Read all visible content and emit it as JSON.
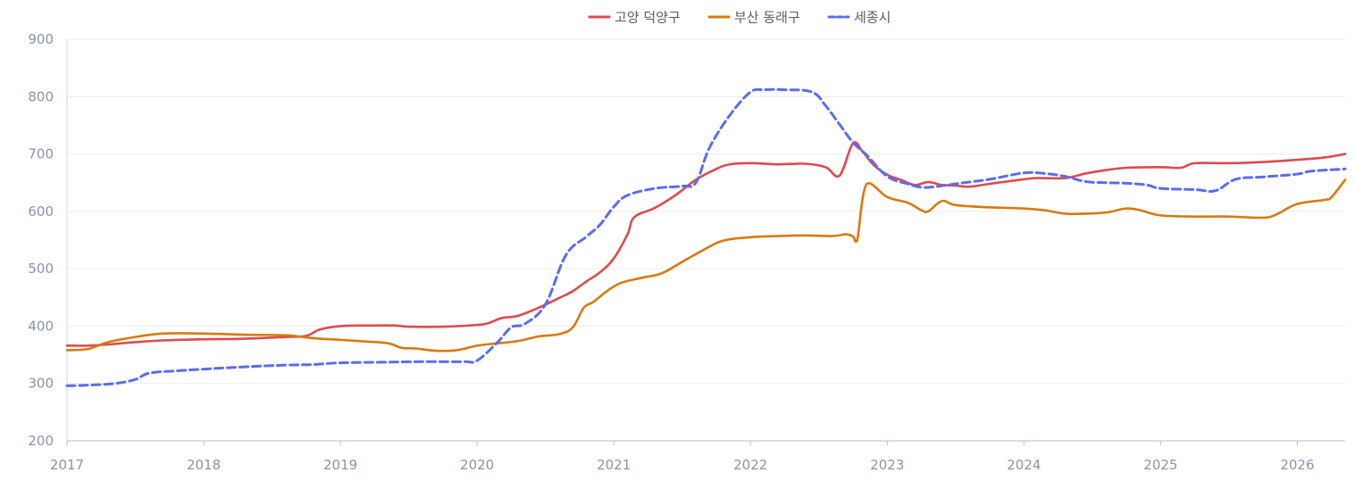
{
  "chart_data": {
    "type": "line",
    "title": "",
    "xlabel": "",
    "ylabel": "",
    "xlim": [
      2017,
      2026.35
    ],
    "ylim": [
      200,
      900
    ],
    "y_ticks": [
      200,
      300,
      400,
      500,
      600,
      700,
      800,
      900
    ],
    "x_ticks": [
      2017,
      2018,
      2019,
      2020,
      2021,
      2022,
      2023,
      2024,
      2025,
      2026
    ],
    "grid": "horizontal",
    "legend_position": "top-center",
    "series": [
      {
        "name": "고양 덕양구",
        "color": "#dd4a4e",
        "dash": "solid",
        "x": [
          2017.0,
          2017.15,
          2017.3,
          2017.5,
          2017.7,
          2018.0,
          2018.3,
          2018.6,
          2018.75,
          2018.85,
          2019.0,
          2019.2,
          2019.4,
          2019.5,
          2019.75,
          2020.0,
          2020.08,
          2020.18,
          2020.3,
          2020.45,
          2020.6,
          2020.7,
          2020.8,
          2020.9,
          2021.0,
          2021.1,
          2021.15,
          2021.3,
          2021.45,
          2021.6,
          2021.75,
          2021.85,
          2022.0,
          2022.2,
          2022.4,
          2022.55,
          2022.65,
          2022.75,
          2022.82,
          2022.9,
          2023.0,
          2023.1,
          2023.2,
          2023.3,
          2023.4,
          2023.5,
          2023.6,
          2023.75,
          2024.0,
          2024.1,
          2024.3,
          2024.45,
          2024.6,
          2024.75,
          2025.0,
          2025.15,
          2025.25,
          2025.5,
          2025.75,
          2026.0,
          2026.2,
          2026.35
        ],
        "values": [
          366,
          366,
          368,
          372,
          375,
          377,
          378,
          381,
          383,
          394,
          400,
          401,
          401,
          399,
          399,
          402,
          405,
          414,
          418,
          432,
          449,
          461,
          478,
          494,
          518,
          560,
          590,
          606,
          628,
          655,
          674,
          682,
          684,
          682,
          683,
          677,
          662,
          719,
          704,
          681,
          664,
          655,
          646,
          651,
          646,
          645,
          643,
          648,
          656,
          658,
          658,
          666,
          672,
          676,
          677,
          676,
          684,
          684,
          686,
          690,
          694,
          700
        ]
      },
      {
        "name": "부산 동래구",
        "color": "#d9790f",
        "dash": "solid",
        "x": [
          2017.0,
          2017.15,
          2017.3,
          2017.5,
          2017.7,
          2018.0,
          2018.3,
          2018.6,
          2018.8,
          2019.0,
          2019.2,
          2019.35,
          2019.45,
          2019.55,
          2019.7,
          2019.85,
          2020.0,
          2020.15,
          2020.3,
          2020.45,
          2020.6,
          2020.7,
          2020.78,
          2020.85,
          2020.95,
          2021.05,
          2021.2,
          2021.35,
          2021.5,
          2021.65,
          2021.8,
          2022.0,
          2022.2,
          2022.4,
          2022.6,
          2022.7,
          2022.75,
          2022.78,
          2022.85,
          2023.0,
          2023.15,
          2023.25,
          2023.3,
          2023.4,
          2023.5,
          2023.75,
          2024.0,
          2024.15,
          2024.3,
          2024.45,
          2024.6,
          2024.75,
          2024.85,
          2025.0,
          2025.25,
          2025.5,
          2025.75,
          2025.85,
          2026.0,
          2026.2,
          2026.25,
          2026.35
        ],
        "values": [
          358,
          360,
          372,
          381,
          387,
          387,
          385,
          384,
          379,
          376,
          373,
          370,
          362,
          361,
          357,
          358,
          366,
          370,
          374,
          382,
          386,
          398,
          432,
          442,
          461,
          475,
          484,
          492,
          512,
          532,
          549,
          555,
          557,
          558,
          557,
          560,
          556,
          549,
          648,
          625,
          615,
          602,
          600,
          618,
          611,
          607,
          605,
          602,
          596,
          596,
          598,
          605,
          602,
          593,
          591,
          591,
          589,
          595,
          613,
          620,
          625,
          655
        ]
      },
      {
        "name": "세종시",
        "color": "#5b6cf0",
        "dash": "dashed",
        "x": [
          2017.0,
          2017.15,
          2017.35,
          2017.5,
          2017.6,
          2017.8,
          2018.0,
          2018.3,
          2018.6,
          2018.8,
          2019.0,
          2019.3,
          2019.6,
          2019.9,
          2020.0,
          2020.15,
          2020.25,
          2020.35,
          2020.5,
          2020.65,
          2020.8,
          2020.9,
          2021.0,
          2021.1,
          2021.3,
          2021.5,
          2021.6,
          2021.7,
          2021.85,
          2022.0,
          2022.1,
          2022.25,
          2022.45,
          2022.55,
          2022.65,
          2022.75,
          2022.85,
          2023.0,
          2023.15,
          2023.25,
          2023.35,
          2023.5,
          2023.75,
          2024.0,
          2024.15,
          2024.3,
          2024.45,
          2024.6,
          2024.75,
          2024.9,
          2025.0,
          2025.25,
          2025.4,
          2025.55,
          2025.75,
          2026.0,
          2026.1,
          2026.35
        ],
        "values": [
          296,
          297,
          300,
          307,
          318,
          322,
          325,
          329,
          332,
          333,
          336,
          337,
          338,
          338,
          340,
          372,
          398,
          404,
          438,
          524,
          556,
          577,
          608,
          628,
          640,
          644,
          650,
          711,
          768,
          808,
          812,
          812,
          808,
          784,
          752,
          720,
          698,
          661,
          648,
          642,
          643,
          648,
          656,
          667,
          666,
          661,
          652,
          650,
          649,
          646,
          640,
          638,
          636,
          656,
          660,
          665,
          670,
          674
        ]
      }
    ]
  }
}
